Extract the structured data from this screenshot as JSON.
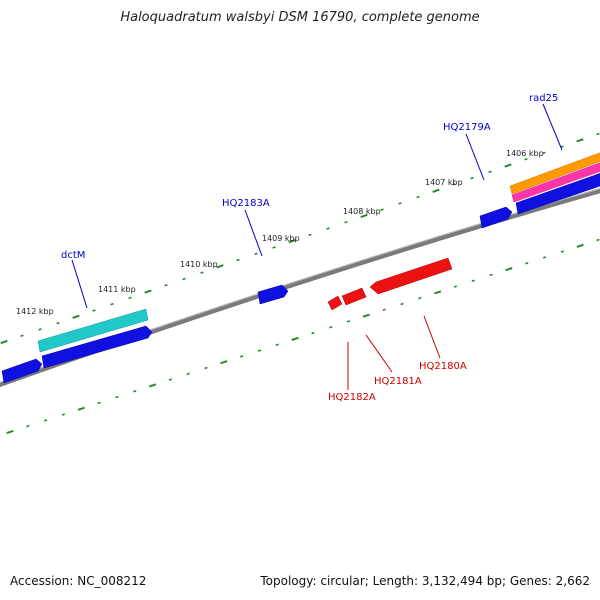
{
  "title": "Haloquadratum walsbyi DSM 16790, complete genome",
  "footer": {
    "accession": "Accession: NC_008212",
    "summary": "Topology: circular; Length: 3,132,494 bp; Genes: 2,662"
  },
  "ticks": [
    {
      "label": "1412 kbp"
    },
    {
      "label": "1411 kbp"
    },
    {
      "label": "1410 kbp"
    },
    {
      "label": "1409 kbp"
    },
    {
      "label": "1408 kbp"
    },
    {
      "label": "1407 kbp"
    },
    {
      "label": "1406 kbp"
    }
  ],
  "genes": {
    "forward_labels": [
      {
        "label": "dctM",
        "color": "#0000cc"
      },
      {
        "label": "HQ2183A",
        "color": "#0000cc"
      },
      {
        "label": "HQ2179A",
        "color": "#0000cc"
      },
      {
        "label": "rad25",
        "color": "#0000cc"
      }
    ],
    "reverse_labels": [
      {
        "label": "HQ2182A",
        "color": "#cc0000"
      },
      {
        "label": "HQ2181A",
        "color": "#cc0000"
      },
      {
        "label": "HQ2180A",
        "color": "#cc0000"
      }
    ]
  },
  "colors": {
    "forward_cds": "#1010e0",
    "reverse_cds": "#ee1111",
    "dctM_track": "#20c8c8",
    "rad25_track": "#ff9900",
    "pink_track": "#ff33aa",
    "backbone": "#7a7a7a",
    "tick_marks": "#2a8a2a"
  }
}
